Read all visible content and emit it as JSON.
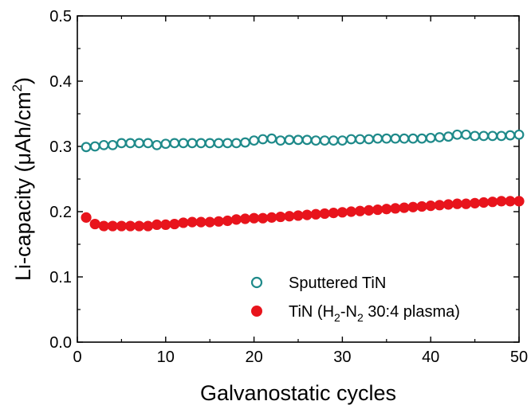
{
  "chart_data": {
    "type": "scatter",
    "xlabel": "Galvanostatic cycles",
    "ylabel": {
      "prefix": "Li-capacity (",
      "mu": "μ",
      "unit": "Ah/cm",
      "sup": "2",
      "suffix": ")"
    },
    "xlim": [
      0,
      50
    ],
    "ylim": [
      0.0,
      0.5
    ],
    "xticks": [
      0,
      10,
      20,
      30,
      40,
      50
    ],
    "xtick_labels": [
      "0",
      "10",
      "20",
      "30",
      "40",
      "50"
    ],
    "yticks": [
      0.0,
      0.1,
      0.2,
      0.3,
      0.4,
      0.5
    ],
    "ytick_labels": [
      "0.0",
      "0.1",
      "0.2",
      "0.3",
      "0.4",
      "0.5"
    ],
    "grid": false,
    "legend_position": "bottom-right",
    "x": [
      1,
      2,
      3,
      4,
      5,
      6,
      7,
      8,
      9,
      10,
      11,
      12,
      13,
      14,
      15,
      16,
      17,
      18,
      19,
      20,
      21,
      22,
      23,
      24,
      25,
      26,
      27,
      28,
      29,
      30,
      31,
      32,
      33,
      34,
      35,
      36,
      37,
      38,
      39,
      40,
      41,
      42,
      43,
      44,
      45,
      46,
      47,
      48,
      49,
      50
    ],
    "series": [
      {
        "name": "Sputtered TiN",
        "marker": "open-circle",
        "color": "#1f8a8a",
        "values": [
          0.299,
          0.3,
          0.302,
          0.302,
          0.305,
          0.305,
          0.305,
          0.305,
          0.302,
          0.304,
          0.305,
          0.305,
          0.305,
          0.305,
          0.305,
          0.305,
          0.305,
          0.305,
          0.306,
          0.309,
          0.311,
          0.312,
          0.309,
          0.31,
          0.31,
          0.31,
          0.309,
          0.309,
          0.309,
          0.309,
          0.311,
          0.311,
          0.311,
          0.312,
          0.312,
          0.312,
          0.312,
          0.312,
          0.312,
          0.313,
          0.314,
          0.315,
          0.318,
          0.318,
          0.316,
          0.316,
          0.316,
          0.316,
          0.317,
          0.318
        ]
      },
      {
        "name_parts": {
          "a": "TiN (H",
          "sub1": "2",
          "b": "-N",
          "sub2": "2",
          "c": " 30:4 plasma)"
        },
        "marker": "filled-circle",
        "color": "#e8141c",
        "values": [
          0.191,
          0.181,
          0.178,
          0.178,
          0.178,
          0.178,
          0.178,
          0.178,
          0.18,
          0.18,
          0.181,
          0.183,
          0.184,
          0.184,
          0.184,
          0.185,
          0.186,
          0.188,
          0.189,
          0.19,
          0.19,
          0.191,
          0.192,
          0.193,
          0.194,
          0.195,
          0.196,
          0.197,
          0.198,
          0.199,
          0.2,
          0.201,
          0.202,
          0.203,
          0.204,
          0.205,
          0.206,
          0.207,
          0.208,
          0.209,
          0.21,
          0.211,
          0.212,
          0.212,
          0.213,
          0.214,
          0.215,
          0.216,
          0.216,
          0.216
        ]
      }
    ]
  }
}
